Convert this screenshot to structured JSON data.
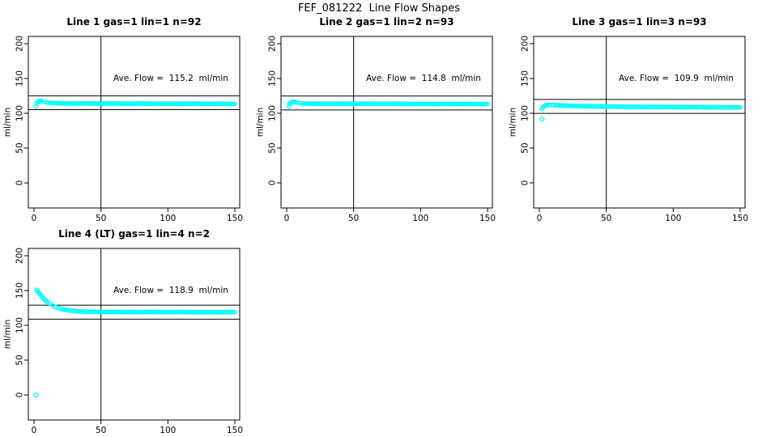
{
  "title": "FEF_081222  Line Flow Shapes",
  "colors": {
    "marker": "#00FFFF",
    "axis": "#000000",
    "background": "#FFFFFF"
  },
  "chart_data": [
    {
      "type": "scatter",
      "title": "Line 1 gas=1 lin=1 n=92",
      "n": 92,
      "ave_flow": 115.2,
      "ave_flow_label": "Ave. Flow =  115.2  ml/min",
      "ylabel": "ml/min",
      "xticks": [
        0,
        50,
        100,
        150
      ],
      "yticks": [
        0,
        50,
        100,
        150,
        200
      ],
      "xlim": [
        -4.3,
        153.7
      ],
      "ylim": [
        -36,
        211
      ],
      "vline_x": 50,
      "hlines": [
        105.2,
        125.2
      ],
      "marker": "open-circle",
      "isolated_points": [
        [
          1.5,
          110
        ]
      ],
      "trace_keypoints": [
        [
          2,
          114.5
        ],
        [
          3,
          116.5
        ],
        [
          4,
          117.6
        ],
        [
          5,
          117.9
        ],
        [
          6,
          117.4
        ],
        [
          8,
          116.4
        ],
        [
          10,
          115.6
        ],
        [
          12,
          115.1
        ],
        [
          15,
          114.7
        ],
        [
          20,
          114.3
        ],
        [
          25,
          114.1
        ],
        [
          30,
          114.0
        ],
        [
          40,
          114.2
        ],
        [
          50,
          113.9
        ],
        [
          60,
          114.1
        ],
        [
          70,
          113.8
        ],
        [
          80,
          114.0
        ],
        [
          90,
          113.7
        ],
        [
          100,
          113.9
        ],
        [
          110,
          113.6
        ],
        [
          120,
          113.8
        ],
        [
          130,
          113.5
        ],
        [
          140,
          113.7
        ],
        [
          150,
          113.5
        ]
      ]
    },
    {
      "type": "scatter",
      "title": "Line 2 gas=1 lin=2 n=93",
      "n": 93,
      "ave_flow": 114.8,
      "ave_flow_label": "Ave. Flow =  114.8  ml/min",
      "ylabel": "ml/min",
      "xticks": [
        0,
        50,
        100,
        150
      ],
      "yticks": [
        0,
        50,
        100,
        150,
        200
      ],
      "xlim": [
        -4.3,
        153.7
      ],
      "ylim": [
        -36,
        211
      ],
      "vline_x": 50,
      "hlines": [
        104.8,
        124.8
      ],
      "marker": "open-circle",
      "isolated_points": [
        [
          2,
          110
        ]
      ],
      "trace_keypoints": [
        [
          2,
          113.5
        ],
        [
          3,
          115.5
        ],
        [
          4,
          116.5
        ],
        [
          5,
          116.7
        ],
        [
          6,
          116.2
        ],
        [
          8,
          115.3
        ],
        [
          10,
          114.6
        ],
        [
          12,
          114.2
        ],
        [
          15,
          113.9
        ],
        [
          20,
          113.7
        ],
        [
          30,
          113.6
        ],
        [
          40,
          113.7
        ],
        [
          50,
          113.5
        ],
        [
          60,
          113.7
        ],
        [
          70,
          113.4
        ],
        [
          80,
          113.6
        ],
        [
          90,
          113.4
        ],
        [
          100,
          113.5
        ],
        [
          110,
          113.3
        ],
        [
          120,
          113.5
        ],
        [
          130,
          113.3
        ],
        [
          140,
          113.4
        ],
        [
          150,
          113.3
        ]
      ]
    },
    {
      "type": "scatter",
      "title": "Line 3 gas=1 lin=3 n=93",
      "n": 93,
      "ave_flow": 109.9,
      "ave_flow_label": "Ave. Flow =  109.9  ml/min",
      "ylabel": "ml/min",
      "xticks": [
        0,
        50,
        100,
        150
      ],
      "yticks": [
        0,
        50,
        100,
        150,
        200
      ],
      "xlim": [
        -4.3,
        153.7
      ],
      "ylim": [
        -36,
        211
      ],
      "vline_x": 50,
      "hlines": [
        99.9,
        119.9
      ],
      "marker": "open-circle",
      "isolated_points": [
        [
          2,
          92
        ]
      ],
      "trace_keypoints": [
        [
          2,
          106.5
        ],
        [
          3,
          109.0
        ],
        [
          4,
          110.5
        ],
        [
          5,
          111.4
        ],
        [
          6,
          111.9
        ],
        [
          8,
          112.1
        ],
        [
          10,
          112.0
        ],
        [
          12,
          111.8
        ],
        [
          15,
          111.4
        ],
        [
          20,
          111.0
        ],
        [
          25,
          110.7
        ],
        [
          30,
          110.4
        ],
        [
          40,
          110.0
        ],
        [
          50,
          109.8
        ],
        [
          60,
          109.6
        ],
        [
          70,
          109.4
        ],
        [
          80,
          109.2
        ],
        [
          90,
          109.1
        ],
        [
          100,
          108.9
        ],
        [
          110,
          108.8
        ],
        [
          120,
          108.7
        ],
        [
          130,
          108.6
        ],
        [
          140,
          108.5
        ],
        [
          150,
          108.5
        ]
      ]
    },
    {
      "type": "scatter",
      "title": "Line 4 (LT) gas=1 lin=4 n=2",
      "n": 2,
      "ave_flow": 118.9,
      "ave_flow_label": "Ave. Flow =  118.9  ml/min",
      "ylabel": "ml/min",
      "xticks": [
        0,
        50,
        100,
        150
      ],
      "yticks": [
        0,
        50,
        100,
        150,
        200
      ],
      "xlim": [
        -4.3,
        153.7
      ],
      "ylim": [
        -36,
        211
      ],
      "vline_x": 50,
      "hlines": [
        108.9,
        128.9
      ],
      "marker": "open-circle",
      "isolated_points": [
        [
          1.5,
          0
        ]
      ],
      "trace_keypoints": [
        [
          2,
          151
        ],
        [
          3,
          148.5
        ],
        [
          4,
          146
        ],
        [
          5,
          143.5
        ],
        [
          6,
          141.2
        ],
        [
          7,
          139
        ],
        [
          8,
          137
        ],
        [
          9,
          135.2
        ],
        [
          10,
          133.5
        ],
        [
          12,
          130.7
        ],
        [
          14,
          128.4
        ],
        [
          16,
          126.6
        ],
        [
          18,
          125.1
        ],
        [
          20,
          123.9
        ],
        [
          23,
          122.5
        ],
        [
          26,
          121.5
        ],
        [
          30,
          120.6
        ],
        [
          35,
          119.9
        ],
        [
          40,
          119.6
        ],
        [
          50,
          119.2
        ],
        [
          60,
          119.1
        ],
        [
          70,
          119.2
        ],
        [
          80,
          119.0
        ],
        [
          90,
          119.1
        ],
        [
          100,
          119.0
        ],
        [
          110,
          119.1
        ],
        [
          120,
          118.9
        ],
        [
          130,
          119.0
        ],
        [
          140,
          118.9
        ],
        [
          150,
          119.0
        ]
      ]
    }
  ]
}
